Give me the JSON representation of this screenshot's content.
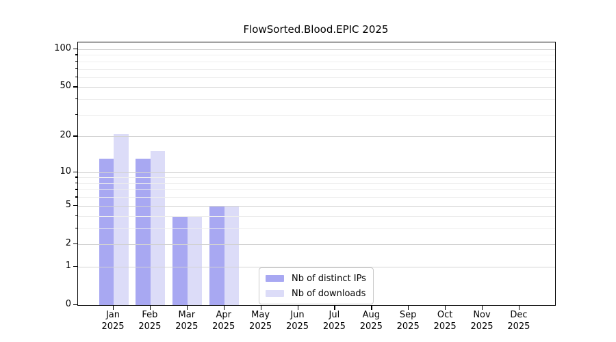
{
  "chart_data": {
    "type": "bar",
    "title": "FlowSorted.Blood.EPIC 2025",
    "categories": [
      {
        "month": "Jan",
        "year": "2025"
      },
      {
        "month": "Feb",
        "year": "2025"
      },
      {
        "month": "Mar",
        "year": "2025"
      },
      {
        "month": "Apr",
        "year": "2025"
      },
      {
        "month": "May",
        "year": "2025"
      },
      {
        "month": "Jun",
        "year": "2025"
      },
      {
        "month": "Jul",
        "year": "2025"
      },
      {
        "month": "Aug",
        "year": "2025"
      },
      {
        "month": "Sep",
        "year": "2025"
      },
      {
        "month": "Oct",
        "year": "2025"
      },
      {
        "month": "Nov",
        "year": "2025"
      },
      {
        "month": "Dec",
        "year": "2025"
      }
    ],
    "series": [
      {
        "name": "Nb of distinct IPs",
        "color": "#a8a8f2",
        "values": [
          13,
          13,
          4,
          5,
          0,
          0,
          0,
          0,
          0,
          0,
          0,
          0
        ]
      },
      {
        "name": "Nb of downloads",
        "color": "#dcdcf8",
        "values": [
          21,
          15,
          4,
          5,
          0,
          0,
          0,
          0,
          0,
          0,
          0,
          0
        ]
      }
    ],
    "yscale": "log1p",
    "ylim": [
      0,
      100
    ],
    "yticks": [
      0,
      1,
      2,
      5,
      10,
      20,
      50,
      100
    ],
    "yticks_minor": [
      3,
      4,
      6,
      7,
      8,
      9,
      30,
      40,
      60,
      70,
      80,
      90
    ],
    "grid": true,
    "legend_position": "lower center"
  }
}
